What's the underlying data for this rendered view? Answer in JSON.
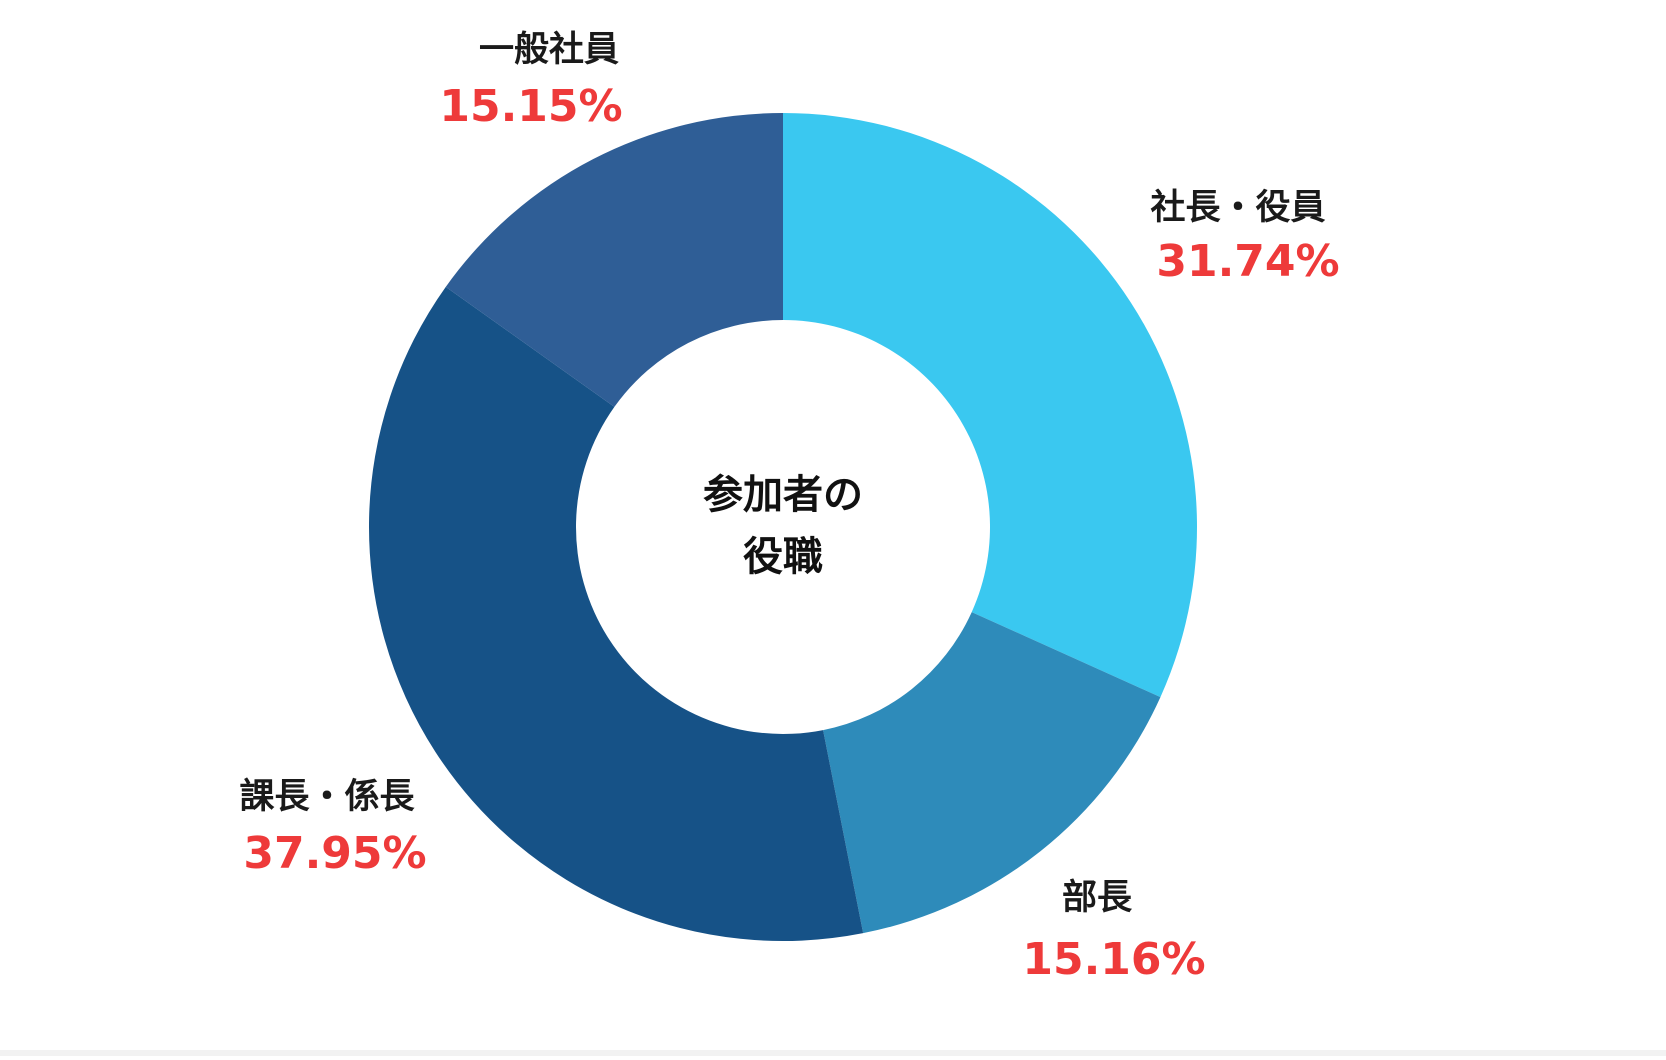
{
  "chart_data": {
    "type": "donut",
    "title": [
      "参加者の",
      "役職"
    ],
    "categories": [
      "社長・役員",
      "部長",
      "課長・係長",
      "一般社員"
    ],
    "values": [
      31.74,
      15.16,
      37.95,
      15.15
    ],
    "value_labels": [
      "31.74%",
      "15.16%",
      "37.95%",
      "15.15%"
    ],
    "colors": [
      "#3ac8f0",
      "#2e8bba",
      "#165287",
      "#2f5e96"
    ]
  }
}
